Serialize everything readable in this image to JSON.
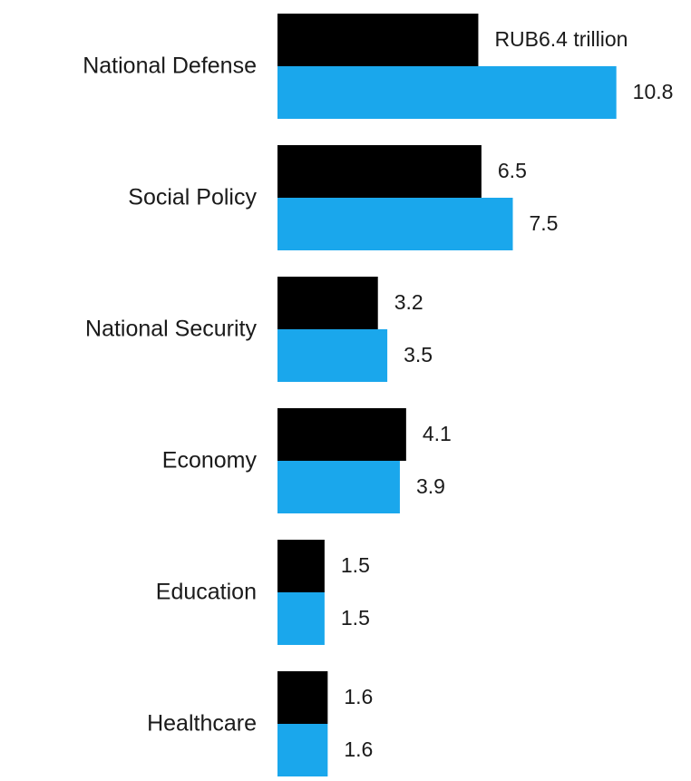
{
  "chart_data": {
    "type": "bar",
    "orientation": "horizontal",
    "categories": [
      "National Defense",
      "Social Policy",
      "National Security",
      "Economy",
      "Education",
      "Healthcare"
    ],
    "series": [
      {
        "color": "#000000",
        "values": [
          6.4,
          6.5,
          3.2,
          4.1,
          1.5,
          1.6
        ],
        "value_labels": [
          "RUB6.4 trillion",
          "6.5",
          "3.2",
          "4.1",
          "1.5",
          "1.6"
        ]
      },
      {
        "color": "#1aa7ec",
        "values": [
          10.8,
          7.5,
          3.5,
          3.9,
          1.5,
          1.6
        ],
        "value_labels": [
          "10.8",
          "7.5",
          "3.5",
          "3.9",
          "1.5",
          "1.6"
        ]
      }
    ],
    "title": "",
    "xlabel": "",
    "ylabel": "",
    "legend": "none",
    "grid": false,
    "xlim": [
      0,
      10.8
    ]
  }
}
